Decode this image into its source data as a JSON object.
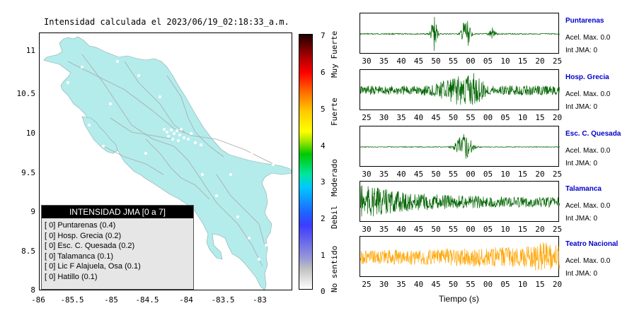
{
  "map": {
    "title": "Intensidad calculada el 2023/06/19_02:18:33_a.m.",
    "y_ticks": [
      "11",
      "10.5",
      "10",
      "9.5",
      "9",
      "8.5",
      "8"
    ],
    "x_ticks": [
      "-86",
      "-85.5",
      "-85",
      "-84.5",
      "-84",
      "-83.5",
      "-83"
    ],
    "land_color": "#b4ecec"
  },
  "legend": {
    "title": "INTENSIDAD JMA [0 a 7]",
    "rows": [
      "[ 0] Puntarenas (0.4)",
      "[ 0] Hosp. Grecia (0.2)",
      "[ 0] Esc. C. Quesada (0.2)",
      "[ 0] Talamanca (0.1)",
      "[ 0] Lic F Alajuela, Osa (0.1)",
      "[ 0] Hatillo (0.1)"
    ]
  },
  "colorbar": {
    "numbers": [
      "7",
      "6",
      "5",
      "4",
      "3",
      "2",
      "1",
      "0"
    ],
    "words": [
      "Muy Fuerte",
      "Fuerte",
      "Moderado",
      "Debil",
      "No sentido"
    ]
  },
  "stations": [
    {
      "name": "Puntarenas",
      "acel": "Acel. Max. 0.0",
      "int": "Int JMA: 0",
      "color": "#006400",
      "ticks": [
        "30",
        "35",
        "40",
        "45",
        "50",
        "55",
        "00",
        "05",
        "10",
        "15",
        "20",
        "25"
      ]
    },
    {
      "name": "Hosp. Grecia",
      "acel": "Acel. Max. 0.0",
      "int": "Int JMA: 0",
      "color": "#006400",
      "ticks": [
        "25",
        "30",
        "35",
        "40",
        "45",
        "50",
        "55",
        "00",
        "05",
        "10",
        "15",
        "20"
      ]
    },
    {
      "name": "Esc. C. Quesada",
      "acel": "Acel. Max. 0.0",
      "int": "Int JMA: 0",
      "color": "#006400",
      "ticks": [
        "30",
        "35",
        "40",
        "45",
        "50",
        "55",
        "00",
        "05",
        "10",
        "15",
        "20",
        "25"
      ]
    },
    {
      "name": "Talamanca",
      "acel": "Acel. Max. 0.0",
      "int": "Int JMA: 0",
      "color": "#006400",
      "ticks": [
        "30",
        "35",
        "40",
        "45",
        "50",
        "55",
        "00",
        "05",
        "10",
        "15",
        "20",
        "25"
      ]
    },
    {
      "name": "Teatro Nacional",
      "acel": "Acel. Max. 0.0",
      "int": "Int JMA: 0",
      "color": "#ffa500",
      "ticks": [
        "25",
        "30",
        "35",
        "40",
        "45",
        "50",
        "55",
        "00",
        "05",
        "10",
        "15",
        "20"
      ]
    }
  ],
  "xlabel": "Tiempo (s)"
}
